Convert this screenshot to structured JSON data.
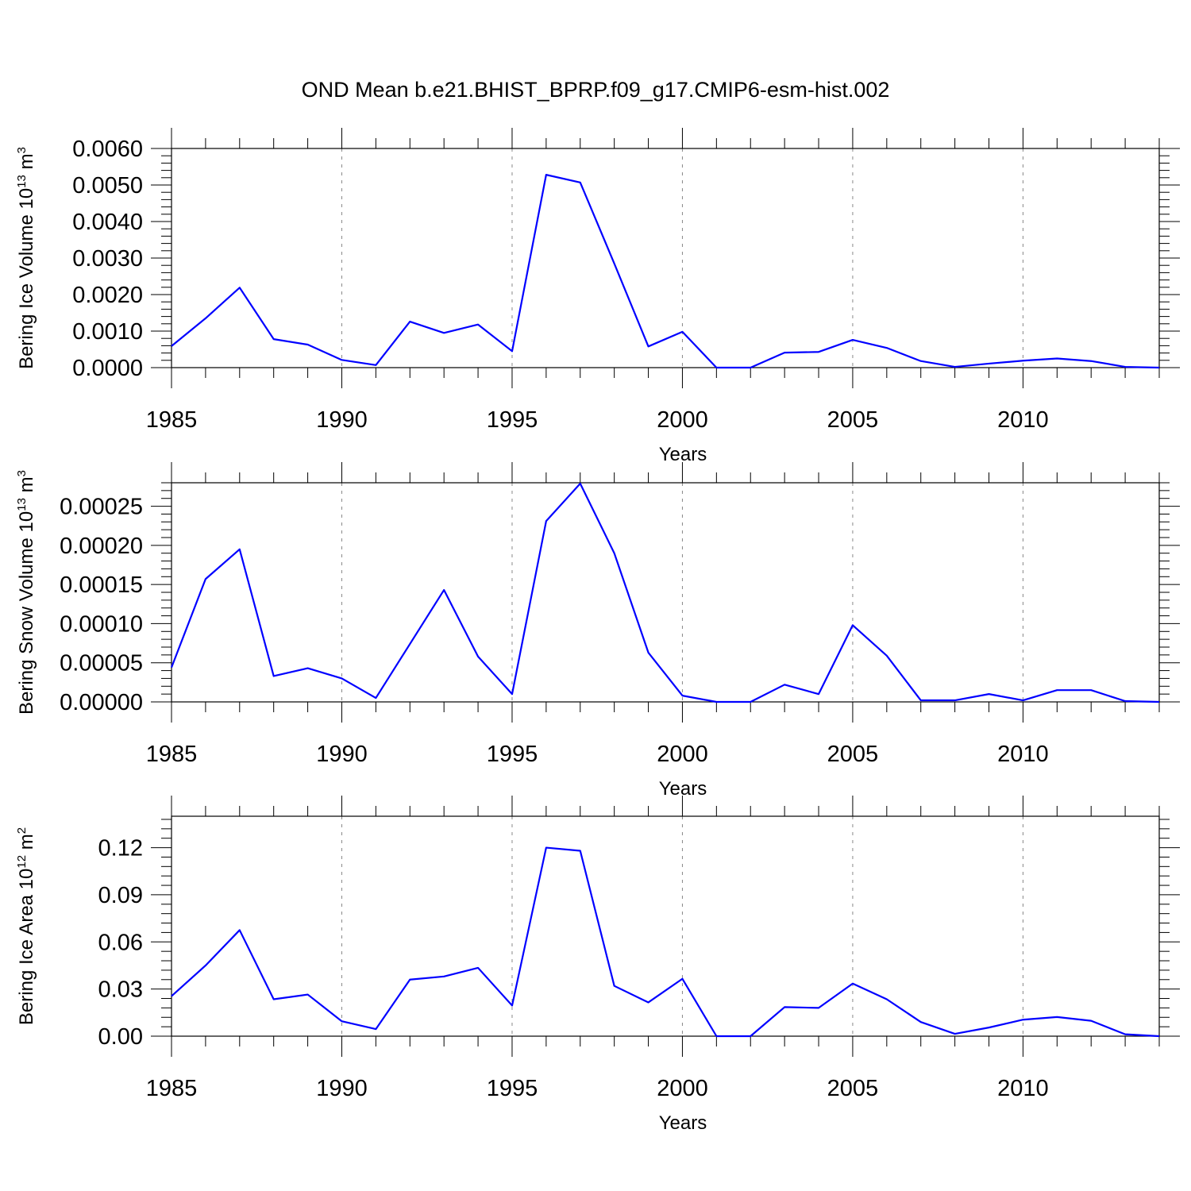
{
  "title": "OND Mean b.e21.BHIST_BPRP.f09_g17.CMIP6-esm-hist.002",
  "colors": {
    "line": "#0000ff",
    "grid": "#888888",
    "axis": "#000000"
  },
  "chart_data": [
    {
      "type": "line",
      "ylabel_main": "Bering Ice Volume 10",
      "ylabel_exp": "13",
      "ylabel_unit": " m",
      "ylabel_unit_exp": "3",
      "xlabel": "Years",
      "xlim": [
        1985,
        2014
      ],
      "ylim": [
        0,
        0.006
      ],
      "yticks": [
        0.0,
        0.001,
        0.002,
        0.003,
        0.004,
        0.005,
        0.006
      ],
      "ytick_labels": [
        "0.0000",
        "0.0010",
        "0.0020",
        "0.0030",
        "0.0040",
        "0.0050",
        "0.0060"
      ],
      "xticks": [
        1985,
        1990,
        1995,
        2000,
        2005,
        2010
      ],
      "xtick_labels": [
        "1985",
        "1990",
        "1995",
        "2000",
        "2005",
        "2010"
      ],
      "x": [
        1985,
        1986,
        1987,
        1988,
        1989,
        1990,
        1991,
        1992,
        1993,
        1994,
        1995,
        1996,
        1997,
        1998,
        1999,
        2000,
        2001,
        2002,
        2003,
        2004,
        2005,
        2006,
        2007,
        2008,
        2009,
        2010,
        2011,
        2012,
        2013,
        2014
      ],
      "values": [
        0.00059,
        0.00135,
        0.00219,
        0.00078,
        0.00063,
        0.00021,
        7e-05,
        0.00126,
        0.00095,
        0.00118,
        0.00045,
        0.00528,
        0.00507,
        0.00285,
        0.00058,
        0.00098,
        0.0,
        0.0,
        0.00041,
        0.00043,
        0.00076,
        0.00054,
        0.00018,
        2e-05,
        0.00011,
        0.00019,
        0.00025,
        0.00018,
        2e-05,
        0.0
      ]
    },
    {
      "type": "line",
      "ylabel_main": "Bering Snow Volume 10",
      "ylabel_exp": "13",
      "ylabel_unit": " m",
      "ylabel_unit_exp": "3",
      "xlabel": "Years",
      "xlim": [
        1985,
        2014
      ],
      "ylim": [
        0,
        0.00028
      ],
      "yticks": [
        0.0,
        5e-05,
        0.0001,
        0.00015,
        0.0002,
        0.00025
      ],
      "ytick_labels": [
        "0.00000",
        "0.00005",
        "0.00010",
        "0.00015",
        "0.00020",
        "0.00025"
      ],
      "xticks": [
        1985,
        1990,
        1995,
        2000,
        2005,
        2010
      ],
      "xtick_labels": [
        "1985",
        "1990",
        "1995",
        "2000",
        "2005",
        "2010"
      ],
      "x": [
        1985,
        1986,
        1987,
        1988,
        1989,
        1990,
        1991,
        1992,
        1993,
        1994,
        1995,
        1996,
        1997,
        1998,
        1999,
        2000,
        2001,
        2002,
        2003,
        2004,
        2005,
        2006,
        2007,
        2008,
        2009,
        2010,
        2011,
        2012,
        2013,
        2014
      ],
      "values": [
        4.4e-05,
        0.000157,
        0.000195,
        3.3e-05,
        4.3e-05,
        3e-05,
        5e-06,
        7.4e-05,
        0.000143,
        5.8e-05,
        1e-05,
        0.000231,
        0.000279,
        0.00019,
        6.3e-05,
        8e-06,
        0.0,
        0.0,
        2.2e-05,
        1e-05,
        9.8e-05,
        5.9e-05,
        2e-06,
        2e-06,
        1e-05,
        2e-06,
        1.5e-05,
        1.5e-05,
        1e-06,
        0.0
      ]
    },
    {
      "type": "line",
      "ylabel_main": "Bering Ice Area 10",
      "ylabel_exp": "12",
      "ylabel_unit": " m",
      "ylabel_unit_exp": "2",
      "xlabel": "Years",
      "xlim": [
        1985,
        2014
      ],
      "ylim": [
        0,
        0.14
      ],
      "yticks": [
        0.0,
        0.03,
        0.06,
        0.09,
        0.12
      ],
      "ytick_labels": [
        "0.00",
        "0.03",
        "0.06",
        "0.09",
        "0.12"
      ],
      "xticks": [
        1985,
        1990,
        1995,
        2000,
        2005,
        2010
      ],
      "xtick_labels": [
        "1985",
        "1990",
        "1995",
        "2000",
        "2005",
        "2010"
      ],
      "x": [
        1985,
        1986,
        1987,
        1988,
        1989,
        1990,
        1991,
        1992,
        1993,
        1994,
        1995,
        1996,
        1997,
        1998,
        1999,
        2000,
        2001,
        2002,
        2003,
        2004,
        2005,
        2006,
        2007,
        2008,
        2009,
        2010,
        2011,
        2012,
        2013,
        2014
      ],
      "values": [
        0.0255,
        0.045,
        0.0675,
        0.0235,
        0.0265,
        0.0095,
        0.0045,
        0.036,
        0.038,
        0.0435,
        0.0195,
        0.12,
        0.118,
        0.032,
        0.0215,
        0.0365,
        0.0,
        0.0,
        0.0185,
        0.018,
        0.0335,
        0.0235,
        0.009,
        0.0015,
        0.0055,
        0.0105,
        0.0122,
        0.0098,
        0.0012,
        0.0
      ]
    }
  ]
}
